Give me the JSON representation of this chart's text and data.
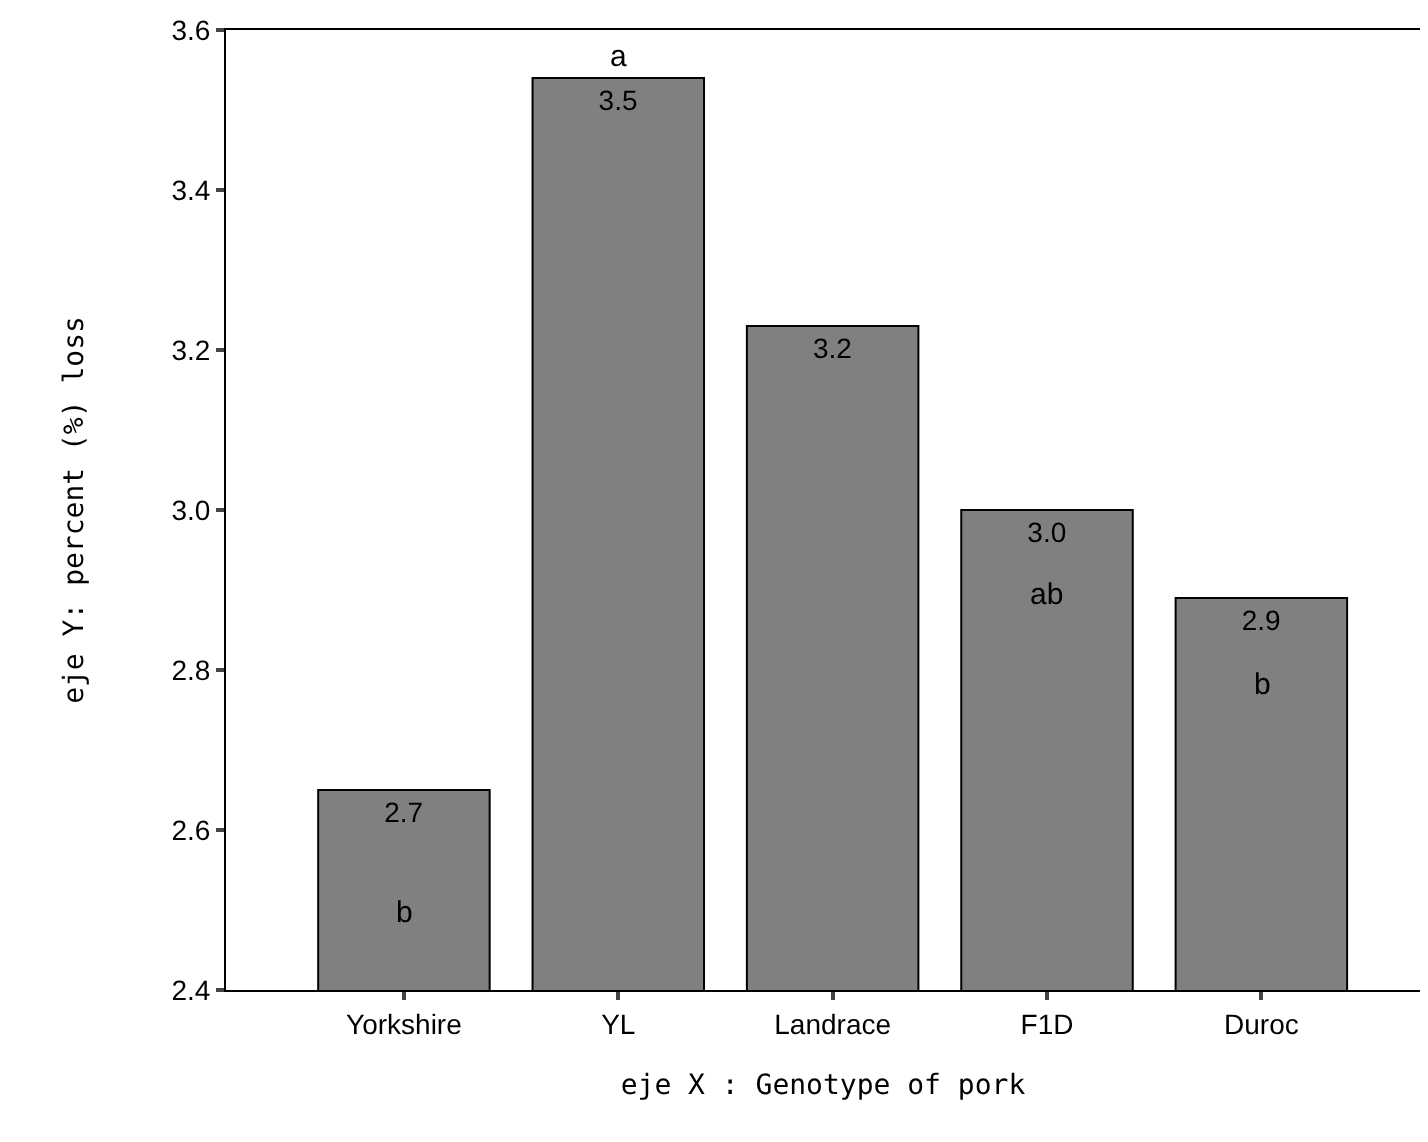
{
  "chart_data": {
    "type": "bar",
    "xlabel": "eje X : Genotype of pork",
    "ylabel": "eje Y: percent (%) loss",
    "categories": [
      "Yorkshire",
      "YL",
      "Landrace",
      "F1D",
      "Duroc"
    ],
    "values": [
      2.65,
      3.54,
      3.23,
      3.0,
      2.89
    ],
    "value_labels": [
      "2.7",
      "3.5",
      "3.2",
      "3.0",
      "2.9"
    ],
    "color": "#808080",
    "ylim": [
      2.4,
      3.6
    ],
    "yticks": [
      "2.4",
      "2.6",
      "2.8",
      "3.0",
      "3.2",
      "3.4",
      "3.6"
    ],
    "grid": false,
    "annotations": [
      "b",
      {
        "text": "a",
        "x": "YL",
        "y": 3.54
      },
      {
        "text": "ab",
        "x": "F1D",
        "y": 3.0
      },
      "b"
    ]
  }
}
